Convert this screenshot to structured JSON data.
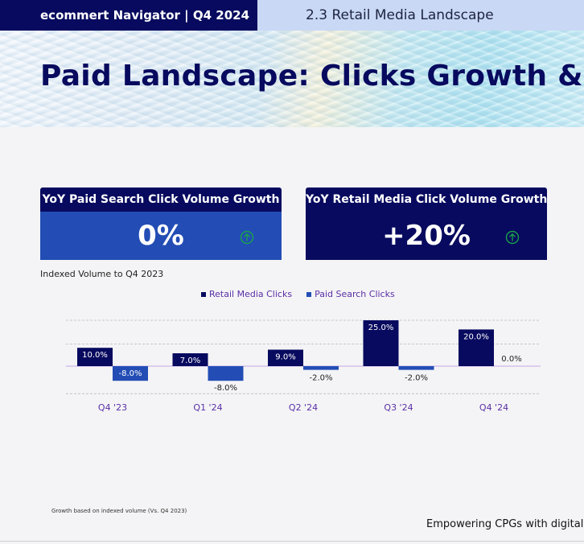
{
  "header": {
    "left_text": "ecommert Navigator  | Q4 2024",
    "right_text": "2.3 Retail Media Landscape"
  },
  "hero": {
    "title": "Paid Landscape: Clicks Growth & CPC"
  },
  "kpis": [
    {
      "title": "YoY Paid Search Click Volume Growth",
      "value": "0%",
      "icon": "arrow-up-circle-icon",
      "icon_color": "#1aa14a",
      "color": "#234db5"
    },
    {
      "title": "YoY Retail Media Click Volume Growth",
      "value": "+20%",
      "icon": "arrow-up-circle-icon",
      "icon_color": "#1aa14a",
      "color": "#070a5e"
    }
  ],
  "chart_data": {
    "type": "bar",
    "title": "Indexed Volume to Q4 2023",
    "categories": [
      "Q4 '23",
      "Q1 '24",
      "Q2 '24",
      "Q3 '24",
      "Q4 '24"
    ],
    "series": [
      {
        "name": "Retail Media Clicks",
        "color": "#070a5e",
        "values": [
          10.0,
          7.0,
          9.0,
          25.0,
          20.0
        ]
      },
      {
        "name": "Paid Search Clicks",
        "color": "#234db5",
        "values": [
          -8.0,
          -8.0,
          -2.0,
          -2.0,
          0.0
        ]
      }
    ],
    "value_suffix": "%",
    "ylim": [
      -15,
      25
    ],
    "grid": true,
    "legend": "top-center"
  },
  "footnote": "Growth based on indexed volume (Vs. Q4 2023)",
  "tagline": "Empowering CPGs with digital ca"
}
